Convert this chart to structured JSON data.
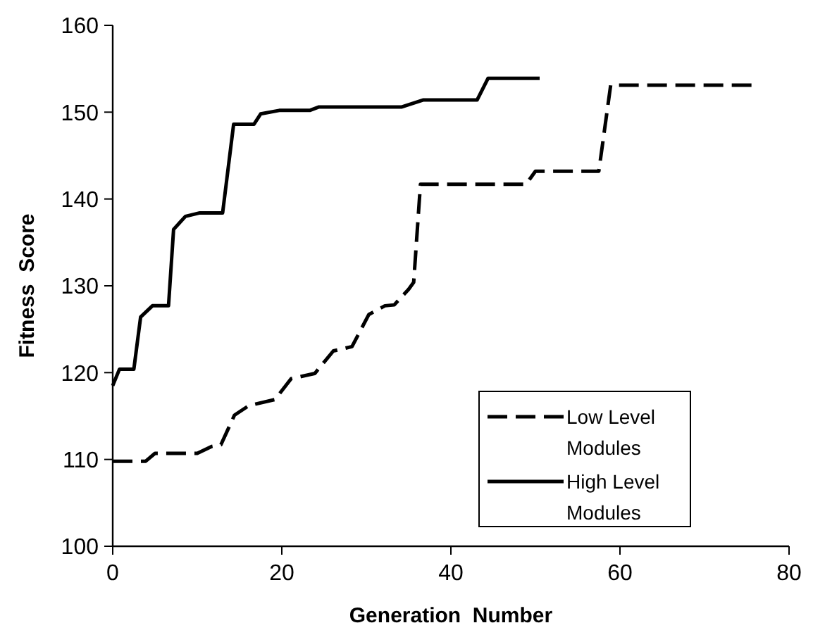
{
  "chart_data": {
    "type": "line",
    "xlabel": "Generation  Number",
    "ylabel": "Fitness  Score",
    "xlim": [
      0,
      80
    ],
    "xticks": [
      0,
      20,
      40,
      60,
      80
    ],
    "ylim": [
      100,
      160
    ],
    "yticks": [
      100,
      110,
      120,
      130,
      140,
      150,
      160
    ],
    "grid": false,
    "legend": "bottom right",
    "marker": "none",
    "series": [
      {
        "name": "Low Level Modules",
        "color": "#000000",
        "line_style": "dashed",
        "x": [
          0,
          3.9,
          5,
          10,
          11.7,
          12.8,
          14.4,
          16.1,
          19.2,
          21.1,
          23.9,
          26.1,
          28.3,
          30.3,
          32.2,
          33.3,
          35,
          35.6,
          36.4,
          48.9,
          50,
          57.5,
          58.9,
          75.6
        ],
        "values": [
          109.8,
          109.8,
          110.7,
          110.7,
          111.5,
          111.7,
          115.1,
          116.2,
          116.9,
          119.3,
          119.9,
          122.5,
          123,
          126.7,
          127.7,
          127.8,
          129.6,
          130.4,
          141.7,
          141.7,
          143.2,
          143.2,
          153.1,
          153.1
        ]
      },
      {
        "name": "High Level Modules",
        "color": "#000000",
        "line_style": "solid",
        "x": [
          0,
          0.8,
          2.5,
          3.3,
          4.7,
          6.6,
          7.2,
          8.6,
          10.3,
          13,
          14.3,
          16.7,
          17.5,
          19.7,
          23.3,
          24.4,
          34.2,
          36.7,
          43.1,
          44.4,
          50.5
        ],
        "values": [
          118.5,
          120.4,
          120.4,
          126.4,
          127.7,
          127.7,
          136.5,
          138,
          138.4,
          138.4,
          148.6,
          148.6,
          149.8,
          150.2,
          150.2,
          150.6,
          150.6,
          151.4,
          151.4,
          153.9,
          153.9
        ]
      }
    ]
  }
}
